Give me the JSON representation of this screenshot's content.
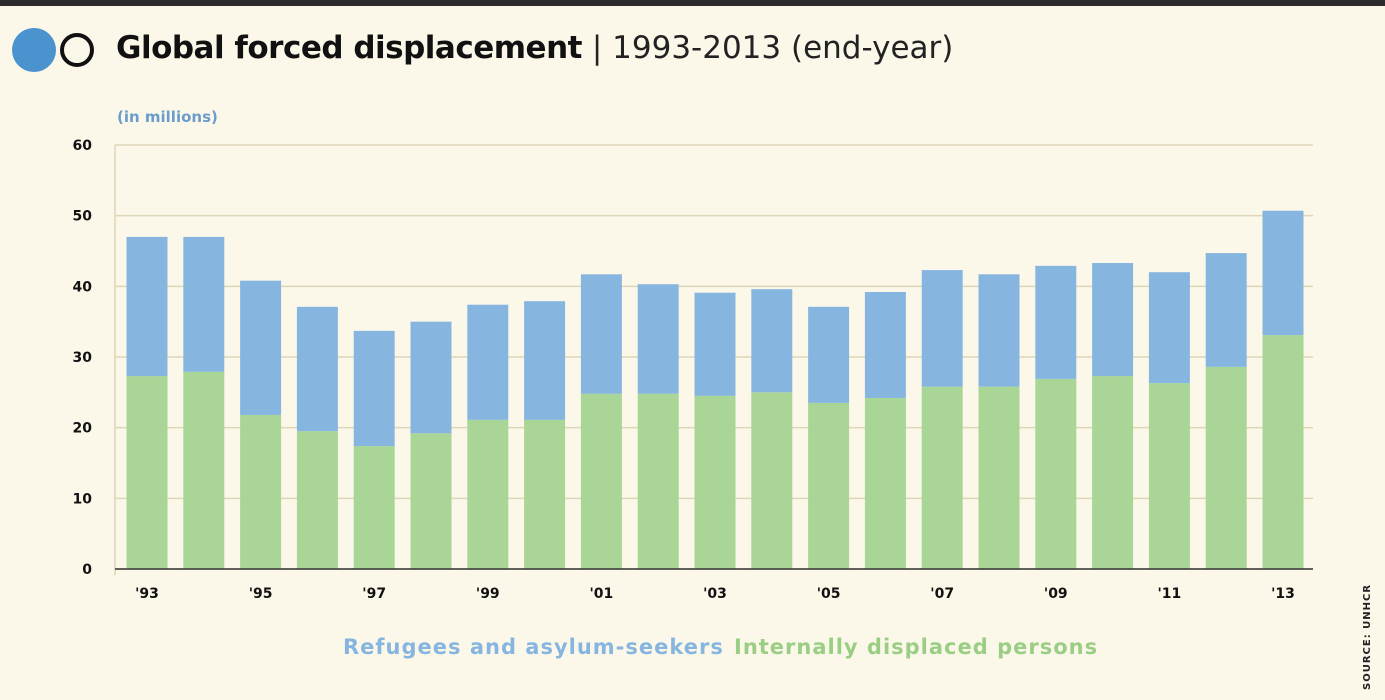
{
  "title": {
    "main": "Global forced displacement",
    "separator": "|",
    "sub": "1993-2013 (end-year)"
  },
  "colors": {
    "refugees": "#86b6e0",
    "idp": "#a9d596",
    "logo_fill": "#4a93cf",
    "background": "#fcf8e9"
  },
  "source": "SOURCE: UNHCR",
  "chart_data": {
    "type": "bar",
    "stacked": true,
    "title": "Global forced displacement | 1993-2013 (end-year)",
    "ylabel": "(in millions)",
    "xlabel": "",
    "ylim": [
      0,
      60
    ],
    "yticks": [
      0,
      10,
      20,
      30,
      40,
      50,
      60
    ],
    "grid": true,
    "legend_position": "bottom",
    "categories": [
      "1993",
      "1994",
      "1995",
      "1996",
      "1997",
      "1998",
      "1999",
      "2000",
      "2001",
      "2002",
      "2003",
      "2004",
      "2005",
      "2006",
      "2007",
      "2008",
      "2009",
      "2010",
      "2011",
      "2012",
      "2013"
    ],
    "xtick_labels": [
      "'93",
      "",
      "'95",
      "",
      "'97",
      "",
      "'99",
      "",
      "'01",
      "",
      "'03",
      "",
      "'05",
      "",
      "'07",
      "",
      "'09",
      "",
      "'11",
      "",
      "'13"
    ],
    "series": [
      {
        "name": "Internally displaced persons",
        "values": [
          27.3,
          27.9,
          21.8,
          19.5,
          17.4,
          19.2,
          21.1,
          21.1,
          24.8,
          24.8,
          24.5,
          25.0,
          23.5,
          24.2,
          25.8,
          25.8,
          26.9,
          27.3,
          26.3,
          28.6,
          33.1
        ]
      },
      {
        "name": "Refugees and asylum-seekers",
        "values": [
          19.7,
          19.1,
          19.0,
          17.6,
          16.3,
          15.8,
          16.3,
          16.8,
          16.9,
          15.5,
          14.6,
          14.6,
          13.6,
          15.0,
          16.5,
          15.9,
          16.0,
          16.0,
          15.7,
          16.1,
          17.6
        ]
      }
    ]
  }
}
